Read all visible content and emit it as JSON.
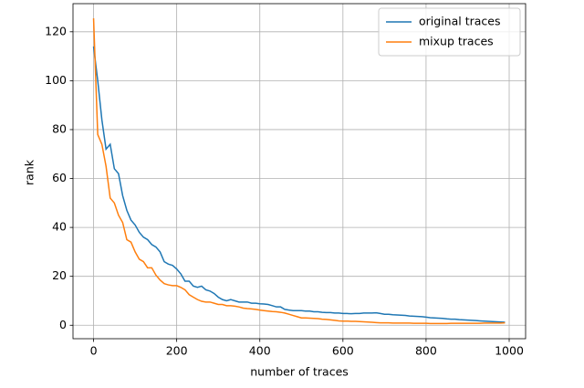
{
  "chart_data": {
    "type": "line",
    "xlabel": "number of traces",
    "ylabel": "rank",
    "x": [
      0,
      10,
      20,
      30,
      40,
      50,
      60,
      70,
      80,
      90,
      100,
      110,
      120,
      130,
      140,
      150,
      160,
      170,
      180,
      190,
      200,
      210,
      220,
      230,
      240,
      250,
      260,
      270,
      280,
      290,
      300,
      310,
      320,
      330,
      340,
      350,
      360,
      370,
      380,
      390,
      400,
      410,
      420,
      430,
      440,
      450,
      460,
      470,
      480,
      490,
      500,
      510,
      520,
      530,
      540,
      550,
      560,
      570,
      580,
      590,
      600,
      610,
      620,
      630,
      640,
      650,
      660,
      670,
      680,
      690,
      700,
      710,
      720,
      730,
      740,
      750,
      760,
      770,
      780,
      790,
      800,
      810,
      820,
      830,
      840,
      850,
      860,
      870,
      880,
      890,
      900,
      910,
      920,
      930,
      940,
      950,
      960,
      970,
      980,
      990
    ],
    "series": [
      {
        "name": "original traces",
        "color": "#1f77b4",
        "values": [
          114,
          100,
          84,
          72,
          74,
          64,
          62,
          53,
          47,
          43,
          41,
          38,
          36,
          35,
          33,
          32,
          30,
          26,
          25,
          24.5,
          23,
          21,
          18,
          18,
          16,
          15.5,
          16,
          14.5,
          14,
          13,
          11.5,
          10.5,
          10,
          10.5,
          10,
          9.5,
          9.5,
          9.5,
          9,
          9,
          8.8,
          8.7,
          8.5,
          8,
          7.5,
          7.5,
          6.5,
          6.2,
          6,
          6,
          6,
          5.8,
          5.8,
          5.5,
          5.5,
          5.3,
          5.2,
          5.2,
          5,
          5,
          4.8,
          4.8,
          4.7,
          4.8,
          4.8,
          5,
          5,
          5,
          5.1,
          4.8,
          4.5,
          4.5,
          4.3,
          4.2,
          4.1,
          4,
          3.8,
          3.7,
          3.6,
          3.5,
          3.3,
          3.1,
          3,
          2.9,
          2.8,
          2.6,
          2.5,
          2.5,
          2.3,
          2.2,
          2.1,
          2,
          1.9,
          1.8,
          1.7,
          1.6,
          1.5,
          1.4,
          1.3,
          1.2
        ]
      },
      {
        "name": "mixup traces",
        "color": "#ff7f0e",
        "values": [
          125.5,
          78,
          74,
          65,
          52,
          50,
          45,
          42,
          35,
          34,
          30,
          27,
          26,
          23.5,
          23.5,
          20.5,
          18.5,
          17,
          16.5,
          16.2,
          16.2,
          15.5,
          14.5,
          12.5,
          11.5,
          10.5,
          9.8,
          9.5,
          9.5,
          9,
          8.5,
          8.5,
          8,
          8,
          7.8,
          7.5,
          7,
          6.8,
          6.7,
          6.5,
          6.2,
          6,
          5.8,
          5.6,
          5.5,
          5.3,
          5,
          4.5,
          4,
          3.5,
          3,
          3,
          2.9,
          2.8,
          2.7,
          2.5,
          2.4,
          2.2,
          2,
          1.8,
          1.7,
          1.7,
          1.6,
          1.6,
          1.5,
          1.4,
          1.3,
          1.2,
          1.1,
          1,
          1,
          1,
          0.9,
          0.9,
          0.9,
          0.9,
          0.9,
          0.8,
          0.8,
          0.8,
          0.8,
          0.7,
          0.7,
          0.7,
          0.7,
          0.7,
          0.8,
          0.8,
          0.8,
          0.8,
          0.8,
          0.8,
          0.8,
          0.8,
          0.9,
          0.9,
          0.9,
          0.9,
          0.9,
          1
        ]
      }
    ],
    "xlim": [
      -49.5,
      1039.5
    ],
    "ylim": [
      -5.5,
      131.5
    ],
    "xticks": [
      0,
      200,
      400,
      600,
      800,
      1000
    ],
    "yticks": [
      0,
      20,
      40,
      60,
      80,
      100,
      120
    ],
    "grid": true,
    "legend": "upper right"
  }
}
